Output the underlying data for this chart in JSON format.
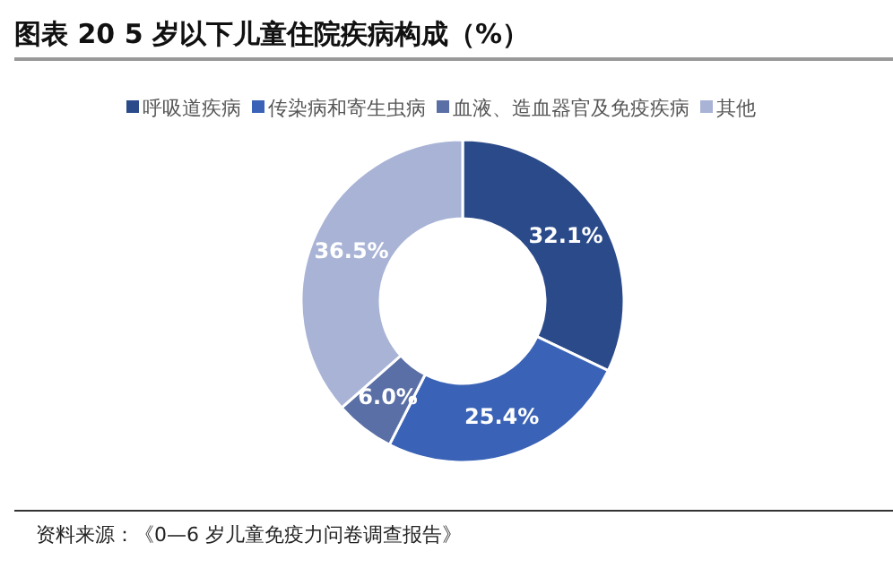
{
  "chart_data": {
    "type": "donut",
    "title": "图表 20 5 岁以下儿童住院疾病构成（%）",
    "categories": [
      "呼吸道疾病",
      "传染病和寄生虫病",
      "血液、造血器官及免疫疾病",
      "其他"
    ],
    "values": [
      32.1,
      25.4,
      6.0,
      36.5
    ],
    "colors": [
      "#2b4a8a",
      "#3a62b6",
      "#5a6fa6",
      "#a8b3d6"
    ],
    "value_labels": [
      "32.1%",
      "25.4%",
      "6.0%",
      "36.5%"
    ],
    "legend": "top",
    "annotations": [
      "资料来源：《0—6 岁儿童免疫力问卷调查报告》"
    ]
  }
}
